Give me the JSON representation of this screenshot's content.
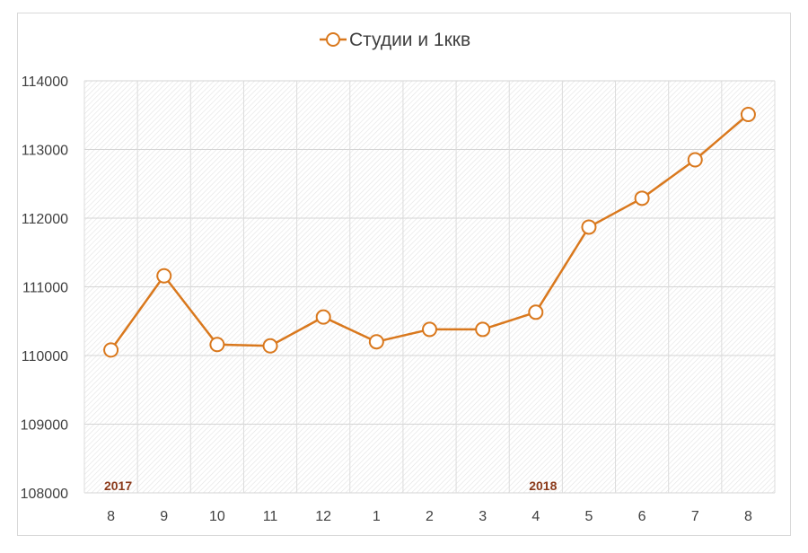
{
  "chart_data": {
    "type": "line",
    "series": [
      {
        "name": "Студии и 1ккв",
        "color": "#d9781d",
        "values": [
          110080,
          111160,
          110160,
          110140,
          110560,
          110200,
          110380,
          110380,
          110630,
          111870,
          112290,
          112850,
          113510
        ]
      }
    ],
    "categories": [
      "8",
      "9",
      "10",
      "11",
      "12",
      "1",
      "2",
      "3",
      "4",
      "5",
      "6",
      "7",
      "8"
    ],
    "year_labels": [
      {
        "text": "2017",
        "category_index": 0
      },
      {
        "text": "2018",
        "category_index": 8
      }
    ],
    "year_label_color": "#8b3a1a",
    "ylim": [
      108000,
      114000
    ],
    "yticks": [
      "108000",
      "109000",
      "110000",
      "111000",
      "112000",
      "113000",
      "114000"
    ],
    "grid": true,
    "legend_position": "top"
  }
}
